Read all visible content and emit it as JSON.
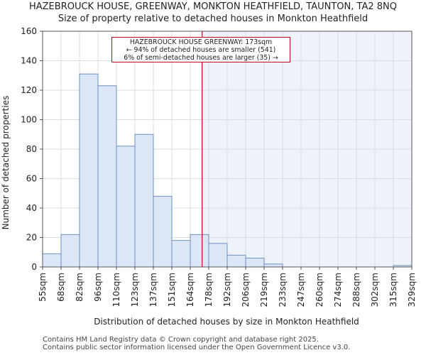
{
  "title": "HAZEBROUCK HOUSE, GREENWAY, MONKTON HEATHFIELD, TAUNTON, TA2 8NQ",
  "subtitle": "Size of property relative to detached houses in Monkton Heathfield",
  "footer": [
    "Contains HM Land Registry data © Crown copyright and database right 2025.",
    "Contains public sector information licensed under the Open Government Licence v3.0."
  ],
  "annotation": {
    "lines": [
      "HAZEBROUCK HOUSE GREENWAY: 173sqm",
      "← 94% of detached houses are smaller (541)",
      "6% of semi-detached houses are larger (35) →"
    ]
  },
  "chart_data": {
    "type": "bar",
    "title": "",
    "xlabel": "Distribution of detached houses by size in Monkton Heathfield",
    "ylabel": "Number of detached properties",
    "ylim": [
      0,
      160
    ],
    "yticks": [
      0,
      20,
      40,
      60,
      80,
      100,
      120,
      140,
      160
    ],
    "bin_edges": [
      55,
      68,
      82,
      96,
      110,
      123,
      137,
      151,
      164,
      178,
      192,
      206,
      219,
      233,
      247,
      260,
      274,
      288,
      302,
      315,
      329
    ],
    "xtick_labels": [
      "55sqm",
      "68sqm",
      "82sqm",
      "96sqm",
      "110sqm",
      "123sqm",
      "137sqm",
      "151sqm",
      "164sqm",
      "178sqm",
      "192sqm",
      "206sqm",
      "219sqm",
      "233sqm",
      "247sqm",
      "260sqm",
      "274sqm",
      "288sqm",
      "302sqm",
      "315sqm",
      "329sqm"
    ],
    "values": [
      9,
      22,
      131,
      123,
      82,
      90,
      48,
      18,
      22,
      16,
      8,
      6,
      2,
      0,
      0,
      0,
      0,
      0,
      0,
      1
    ],
    "marker_value": 173,
    "grid": true,
    "colors": {
      "bar_fill": "#dbe6f6",
      "bar_stroke": "#6f8fbf",
      "highlight_region": "#eef2fb",
      "marker": "#c0001c",
      "grid": "#d8dde6"
    }
  }
}
